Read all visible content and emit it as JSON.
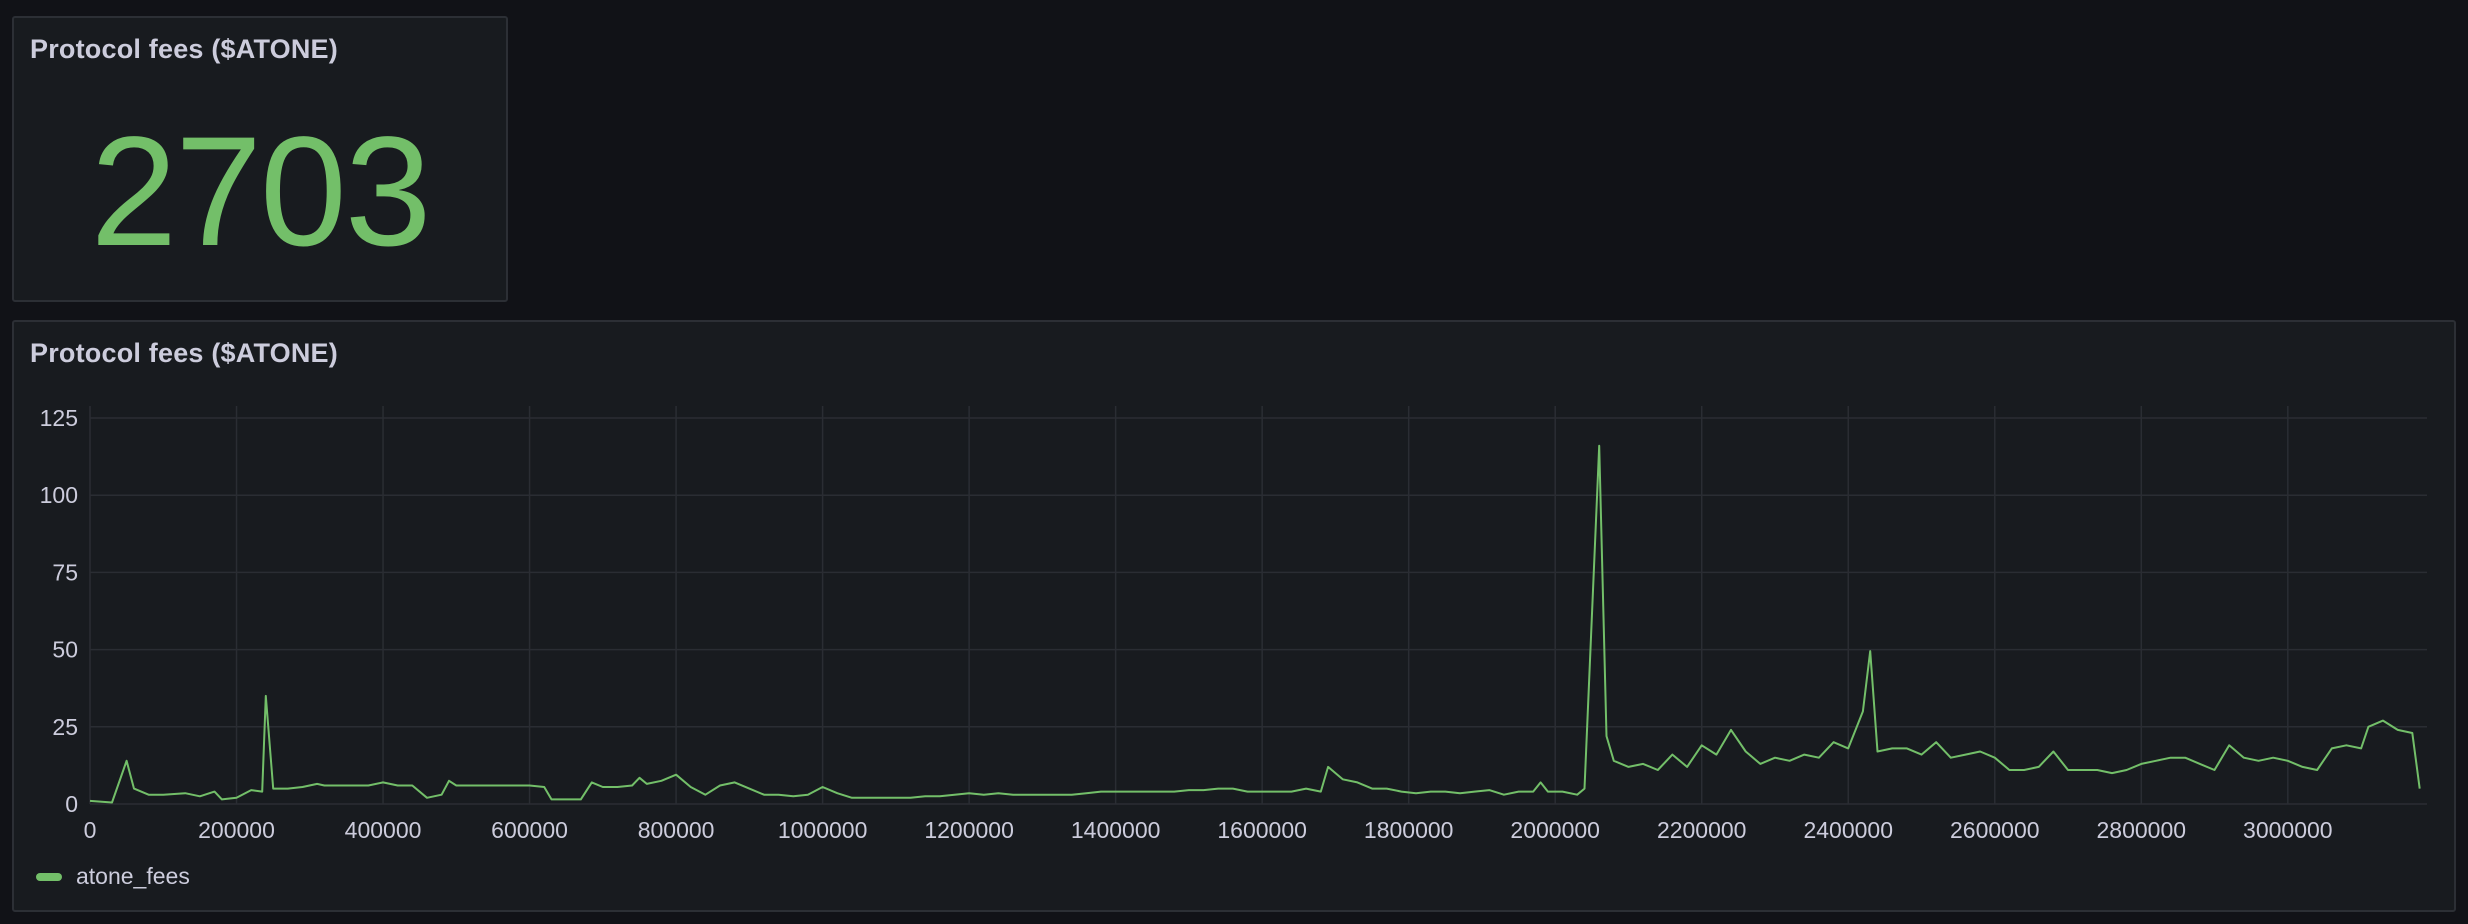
{
  "stat_panel": {
    "title": "Protocol fees ($ATONE)",
    "value": "2703",
    "value_color": "#73bf69"
  },
  "timeseries_panel": {
    "title": "Protocol fees ($ATONE)",
    "legend": [
      {
        "label": "atone_fees",
        "color": "#73bf69"
      }
    ]
  },
  "chart_data": {
    "type": "line",
    "title": "Protocol fees ($ATONE)",
    "xlabel": "",
    "ylabel": "",
    "xlim": [
      0,
      3190000
    ],
    "ylim": [
      0,
      125
    ],
    "xticks": [
      0,
      200000,
      400000,
      600000,
      800000,
      1000000,
      1200000,
      1400000,
      1600000,
      1800000,
      2000000,
      2200000,
      2400000,
      2600000,
      2800000,
      3000000
    ],
    "yticks": [
      0,
      25,
      50,
      75,
      100,
      125
    ],
    "grid": true,
    "legend_position": "bottom-left",
    "series": [
      {
        "name": "atone_fees",
        "color": "#73bf69",
        "points": [
          [
            0,
            1
          ],
          [
            30000,
            0.5
          ],
          [
            50000,
            14
          ],
          [
            60000,
            5
          ],
          [
            80000,
            3
          ],
          [
            100000,
            3
          ],
          [
            130000,
            3.5
          ],
          [
            150000,
            2.5
          ],
          [
            170000,
            4
          ],
          [
            180000,
            1.5
          ],
          [
            200000,
            2
          ],
          [
            220000,
            4.5
          ],
          [
            235000,
            4
          ],
          [
            240000,
            35
          ],
          [
            250000,
            5
          ],
          [
            270000,
            5
          ],
          [
            290000,
            5.5
          ],
          [
            310000,
            6.5
          ],
          [
            320000,
            6
          ],
          [
            340000,
            6
          ],
          [
            360000,
            6
          ],
          [
            380000,
            6
          ],
          [
            400000,
            7
          ],
          [
            420000,
            6
          ],
          [
            440000,
            6
          ],
          [
            460000,
            2
          ],
          [
            480000,
            3
          ],
          [
            490000,
            7.5
          ],
          [
            500000,
            6
          ],
          [
            520000,
            6
          ],
          [
            540000,
            6
          ],
          [
            560000,
            6
          ],
          [
            580000,
            6
          ],
          [
            600000,
            6
          ],
          [
            620000,
            5.5
          ],
          [
            630000,
            1.5
          ],
          [
            650000,
            1.5
          ],
          [
            670000,
            1.5
          ],
          [
            685000,
            7
          ],
          [
            700000,
            5.5
          ],
          [
            720000,
            5.5
          ],
          [
            740000,
            6
          ],
          [
            750000,
            8.5
          ],
          [
            760000,
            6.5
          ],
          [
            780000,
            7.5
          ],
          [
            800000,
            9.5
          ],
          [
            820000,
            5.5
          ],
          [
            840000,
            3
          ],
          [
            860000,
            6
          ],
          [
            880000,
            7
          ],
          [
            900000,
            5
          ],
          [
            920000,
            3
          ],
          [
            940000,
            3
          ],
          [
            960000,
            2.5
          ],
          [
            980000,
            3
          ],
          [
            1000000,
            5.5
          ],
          [
            1020000,
            3.5
          ],
          [
            1040000,
            2
          ],
          [
            1060000,
            2
          ],
          [
            1080000,
            2
          ],
          [
            1100000,
            2
          ],
          [
            1120000,
            2
          ],
          [
            1140000,
            2.5
          ],
          [
            1160000,
            2.5
          ],
          [
            1180000,
            3
          ],
          [
            1200000,
            3.5
          ],
          [
            1220000,
            3
          ],
          [
            1240000,
            3.5
          ],
          [
            1260000,
            3
          ],
          [
            1280000,
            3
          ],
          [
            1300000,
            3
          ],
          [
            1320000,
            3
          ],
          [
            1340000,
            3
          ],
          [
            1360000,
            3.5
          ],
          [
            1380000,
            4
          ],
          [
            1400000,
            4
          ],
          [
            1420000,
            4
          ],
          [
            1440000,
            4
          ],
          [
            1460000,
            4
          ],
          [
            1480000,
            4
          ],
          [
            1500000,
            4.5
          ],
          [
            1520000,
            4.5
          ],
          [
            1540000,
            5
          ],
          [
            1560000,
            5
          ],
          [
            1580000,
            4
          ],
          [
            1600000,
            4
          ],
          [
            1620000,
            4
          ],
          [
            1640000,
            4
          ],
          [
            1660000,
            5
          ],
          [
            1680000,
            4
          ],
          [
            1690000,
            12
          ],
          [
            1710000,
            8
          ],
          [
            1730000,
            7
          ],
          [
            1750000,
            5
          ],
          [
            1770000,
            5
          ],
          [
            1790000,
            4
          ],
          [
            1810000,
            3.5
          ],
          [
            1830000,
            4
          ],
          [
            1850000,
            4
          ],
          [
            1870000,
            3.5
          ],
          [
            1890000,
            4
          ],
          [
            1910000,
            4.5
          ],
          [
            1930000,
            3
          ],
          [
            1950000,
            4
          ],
          [
            1970000,
            4
          ],
          [
            1980000,
            7
          ],
          [
            1990000,
            4
          ],
          [
            2010000,
            4
          ],
          [
            2030000,
            3
          ],
          [
            2040000,
            5
          ],
          [
            2060000,
            116
          ],
          [
            2070000,
            22
          ],
          [
            2080000,
            14
          ],
          [
            2100000,
            12
          ],
          [
            2120000,
            13
          ],
          [
            2140000,
            11
          ],
          [
            2160000,
            16
          ],
          [
            2180000,
            12
          ],
          [
            2200000,
            19
          ],
          [
            2220000,
            16
          ],
          [
            2240000,
            24
          ],
          [
            2260000,
            17
          ],
          [
            2280000,
            13
          ],
          [
            2300000,
            15
          ],
          [
            2320000,
            14
          ],
          [
            2340000,
            16
          ],
          [
            2360000,
            15
          ],
          [
            2380000,
            20
          ],
          [
            2400000,
            18
          ],
          [
            2420000,
            30
          ],
          [
            2430000,
            49.5
          ],
          [
            2440000,
            17
          ],
          [
            2460000,
            18
          ],
          [
            2480000,
            18
          ],
          [
            2500000,
            16
          ],
          [
            2520000,
            20
          ],
          [
            2540000,
            15
          ],
          [
            2560000,
            16
          ],
          [
            2580000,
            17
          ],
          [
            2600000,
            15
          ],
          [
            2620000,
            11
          ],
          [
            2640000,
            11
          ],
          [
            2660000,
            12
          ],
          [
            2680000,
            17
          ],
          [
            2700000,
            11
          ],
          [
            2720000,
            11
          ],
          [
            2740000,
            11
          ],
          [
            2760000,
            10
          ],
          [
            2780000,
            11
          ],
          [
            2800000,
            13
          ],
          [
            2820000,
            14
          ],
          [
            2840000,
            15
          ],
          [
            2860000,
            15
          ],
          [
            2880000,
            13
          ],
          [
            2900000,
            11
          ],
          [
            2920000,
            19
          ],
          [
            2940000,
            15
          ],
          [
            2960000,
            14
          ],
          [
            2980000,
            15
          ],
          [
            3000000,
            14
          ],
          [
            3020000,
            12
          ],
          [
            3040000,
            11
          ],
          [
            3060000,
            18
          ],
          [
            3080000,
            19
          ],
          [
            3100000,
            18
          ],
          [
            3110000,
            25
          ],
          [
            3130000,
            27
          ],
          [
            3150000,
            24
          ],
          [
            3170000,
            23
          ],
          [
            3180000,
            5
          ]
        ]
      }
    ]
  }
}
